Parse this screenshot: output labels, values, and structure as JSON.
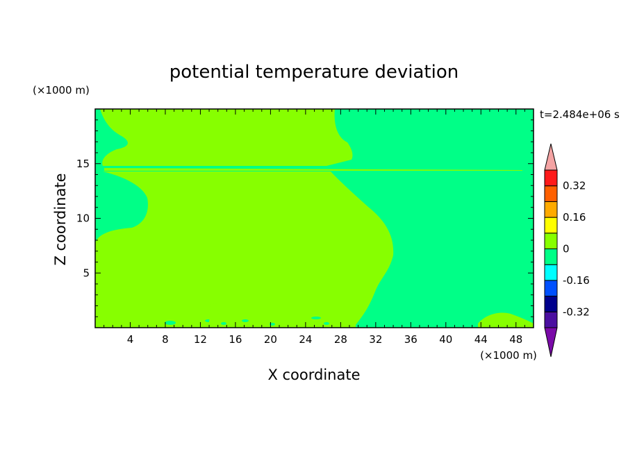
{
  "chart_data": {
    "type": "heatmap",
    "title": "potential temperature deviation",
    "xlabel": "X coordinate",
    "ylabel": "Z coordinate",
    "x_unit": "(×1000 m)",
    "z_unit": "(×1000 m)",
    "time_label": "t=2.484e+06 s",
    "xlim": [
      0,
      50
    ],
    "ylim": [
      0,
      20
    ],
    "x_ticks": [
      4,
      8,
      12,
      16,
      20,
      24,
      28,
      32,
      36,
      40,
      44,
      48
    ],
    "y_ticks": [
      5,
      10,
      15
    ],
    "colorbar": {
      "levels": [
        -0.4,
        -0.32,
        -0.24,
        -0.16,
        -0.08,
        0,
        0.08,
        0.16,
        0.24,
        0.32,
        0.4
      ],
      "labels": [
        "0.32",
        "0.16",
        "0",
        "-0.16",
        "-0.32"
      ],
      "label_values": [
        0.32,
        0.16,
        0,
        -0.16,
        -0.32
      ],
      "colors": [
        "#4b0fa0",
        "#00008c",
        "#0050ff",
        "#00ffff",
        "#00ff87",
        "#87ff00",
        "#ffff00",
        "#ffaa00",
        "#ff6000",
        "#ff1a1a"
      ],
      "under_color": "#7a0aa8",
      "over_color": "#f4a3a3"
    },
    "field_summary": {
      "background_band": "-0.08 to 0",
      "dominant_band": "0 to 0.08",
      "regions": [
        {
          "band": "0 to 0.08",
          "description": "left/central region x≈0–34, z≈0–14; narrowing upward"
        },
        {
          "band": "0 to 0.08",
          "description": "upper layer x≈1–28, z≈14.6–20"
        },
        {
          "band": "-0.08 to 0",
          "description": "right region x≈27–50 and thin layer near z≈14.3"
        }
      ]
    }
  }
}
